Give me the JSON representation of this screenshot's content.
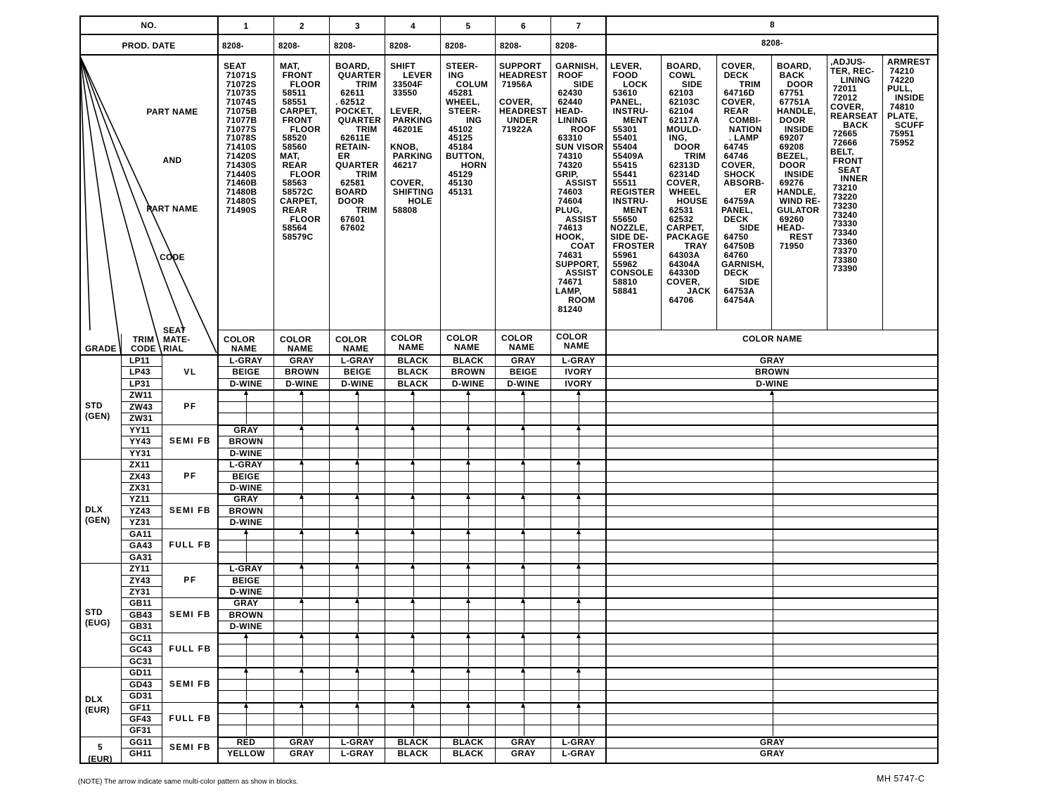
{
  "header": {
    "no_label": "NO.",
    "prod_date_label": "PROD. DATE",
    "part_name_label_lines": [
      "PART NAME",
      "AND",
      "PART NAME",
      "CODE"
    ],
    "columns": [
      {
        "no": "1",
        "prod_date": "8208-"
      },
      {
        "no": "2",
        "prod_date": "8208-"
      },
      {
        "no": "3",
        "prod_date": "8208-"
      },
      {
        "no": "4",
        "prod_date": "8208-"
      },
      {
        "no": "5",
        "prod_date": "8208-"
      },
      {
        "no": "6",
        "prod_date": "8208-"
      },
      {
        "no": "7",
        "prod_date": "8208-"
      },
      {
        "no": "8",
        "prod_date": "8208-"
      }
    ]
  },
  "parts": {
    "col1": "SEAT\n 71071S\n 71072S\n 71073S\n 71074S\n 71075B\n 71077B\n 71077S\n 71078S\n 71410S\n 71420S\n 71430S\n 71440S\n 71460B\n 71480B\n 71480S\n 71490S",
    "col2": "MAT,\n FRONT\n    FLOOR\n 58511\n 58551\nCARPET,\n FRONT\n    FLOOR\n 58520\n 58560\nMAT,\n REAR\n    FLOOR\n 58563\n 58572C\nCARPET,\n REAR\n    FLOOR\n 58564\n 58579C",
    "col3": "BOARD,\n QUARTER\n        TRIM\n  62611\n. 62512\nPOCKET,\n QUARTER\n        TRIM\n  62611E\nRETAIN-\n ER\nQUARTER\n        TRIM\n  62581\nBOARD\n DOOR\n        TRIM\n  67601\n  67602",
    "col4": "SHIFT\n     LEVER\n 33504F\n 33550\n\nLEVER,\n PARKING\n 46201E\n\nKNOB,\n PARKING\n 46217\n\nCOVER,\n SHIFTING\n       HOLE\n 58808",
    "col5": "STEER-\n ING\n    COLUM\n 45281\nWHEEL,\n STEER-\n        ING\n 45102\n 45125\n 45184\nBUTTON,\n      HORN\n 45129\n 45130\n 45131",
    "col6": "SUPPORT\nHEADREST\n 71956A\n\nCOVER,\nHEADREST\n   UNDER\n 71922A",
    "col7": "GARNISH,\n ROOF\n       SIDE\n 62430\n 62440\nHEAD-\n LINING\n      ROOF\n 63310\nSUN VISOR\n 74310\n 74320\nGRIP,\n    ASSIST\n 74603\n 74604\nPLUG,\n    ASSIST\n 74613\nHOOK,\n      COAT\n 74631\nSUPPORT,\n    ASSIST\n 74671\nLAMP,\n     ROOM\n 81240",
    "col8a": "LEVER,\n FOOD\n     LOCK\n 53610\nPANEL,\n INSTRU-\n     MENT\n 55301\n 55401\n 55404\n 55409A\n 55415\n 55441\n 55511\nREGISTER\n INSTRU-\n     MENT\n 55650\nNOZZLE,\nSIDE DE-\n FROSTER\n 55961\n 55962\nCONSOLE\n 58810\n 58841",
    "col8b": "BOARD,\n COWL\n      SIDE\n 62103\n 62103C\n 62104\n 62117A\nMOULD-\n ING,\n   DOOR\n       TRIM\n 62313D\n 62314D\nCOVER,\n WHEEL\n    HOUSE\n 62531\n 62532\nCARPET,\nPACKAGE\n       TRAY\n 64303A\n 64304A\n 64330D\nCOVER,\n        JACK\n 64706",
    "col8c": "COVER,\n DECK\n       TRIM\n 64716D\nCOVER,\n REAR\n   COMBI-\n   NATION\n   . LAMP\n 64745\n 64746\nCOVER,\n SHOCK\n ABSORB-\n         ER\n 64759A\nPANEL,\n DECK\n       SIDE\n 64750\n 64750B\n 64760\nGARNISH,\n DECK\n       SIDE\n 64753A\n 64754A",
    "col8d": "BOARD,\n BACK\n    DOOR\n 67751\n 67751A\nHANDLE,\n DOOR\n   INSIDE\n 69207\n 69208\nBEZEL,\n DOOR\n   INSIDE\n 69276\nHANDLE,\n WIND RE-\nGULATOR\n 69260\nHEAD-\n     REST\n 71950",
    "col8e": ",ADJUS-\nTER, REC-\n    LINING\n 72011\n 72012\nCOVER,\nREARSEAT\n     BACK\n 72665\n 72666\nBELT,\n FRONT\n   SEAT\n    INNER\n 73210\n 73220\n 73230\n 73240\n 73330\n 73340\n 73360\n 73370\n 73380\n 73390",
    "col8f": "ARMREST\n 74210\n 74220\nPULL,\n   INSIDE\n 74810\nPLATE,\n   SCUFF\n 75951\n 75952"
  },
  "color_header": {
    "grade": "GRADE",
    "trim_code": "TRIM\nCODE",
    "seat_material": "SEAT\nMATE-\nRIAL",
    "color_name_short": "COLOR\n   NAME",
    "color_name_wide": "COLOR NAME"
  },
  "grades": [
    {
      "label": "STD\n(GEN)"
    },
    {
      "label": "DLX\n(GEN)"
    },
    {
      "label": "STD\n(EUG)"
    },
    {
      "label": "DLX\n(EUR)"
    },
    {
      "label": "5\n(EUR)"
    }
  ],
  "materials": [
    "VL",
    "PF",
    "SEMI FB",
    "PF",
    "SEMI FB",
    "FULL FB",
    "PF",
    "SEMI FB",
    "FULL FB",
    "SEMI FB",
    "FULL FB",
    "SEMI FB"
  ],
  "trim_codes": [
    "LP11",
    "LP43",
    "LP31",
    "ZW11",
    "ZW43",
    "ZW31",
    "YY11",
    "YY43",
    "YY31",
    "ZX11",
    "ZX43",
    "ZX31",
    "YZ11",
    "YZ43",
    "YZ31",
    "GA11",
    "GA43",
    "GA31",
    "ZY11",
    "ZY43",
    "ZY31",
    "GB11",
    "GB43",
    "GB31",
    "GC11",
    "GC43",
    "GC31",
    "GD11",
    "GD43",
    "GD31",
    "GF11",
    "GF43",
    "GF31",
    "GG11",
    "GH11"
  ],
  "colors": {
    "lp": [
      [
        "L-GRAY",
        "GRAY",
        "L-GRAY",
        "BLACK",
        "BLACK",
        "GRAY",
        "L-GRAY",
        "GRAY"
      ],
      [
        "BEIGE",
        "BROWN",
        "BEIGE",
        "BLACK",
        "BROWN",
        "BEIGE",
        "IVORY",
        "BROWN"
      ],
      [
        "D-WINE",
        "D-WINE",
        "D-WINE",
        "BLACK",
        "D-WINE",
        "D-WINE",
        "IVORY",
        "D-WINE"
      ]
    ],
    "col1_yy": [
      "GRAY",
      "BROWN",
      "D-WINE"
    ],
    "col1_zx": [
      "L-GRAY",
      "BEIGE",
      "D-WINE"
    ],
    "col1_yz": [
      "GRAY",
      "BROWN",
      "D-WINE"
    ],
    "col1_zy": [
      "L-GRAY",
      "BEIGE",
      "D-WINE"
    ],
    "col1_gb": [
      "GRAY",
      "BROWN",
      "D-WINE"
    ],
    "gg": [
      "RED",
      "GRAY",
      "L-GRAY",
      "BLACK",
      "BLACK",
      "GRAY",
      "L-GRAY",
      "GRAY"
    ],
    "gh": [
      "YELLOW",
      "GRAY",
      "L-GRAY",
      "BLACK",
      "BLACK",
      "GRAY",
      "L-GRAY",
      "GRAY"
    ]
  },
  "footer": {
    "note": "(NOTE)  The arrow indicate same multi-color pattern as show in blocks.",
    "figure_id": "MH  5747-C"
  }
}
